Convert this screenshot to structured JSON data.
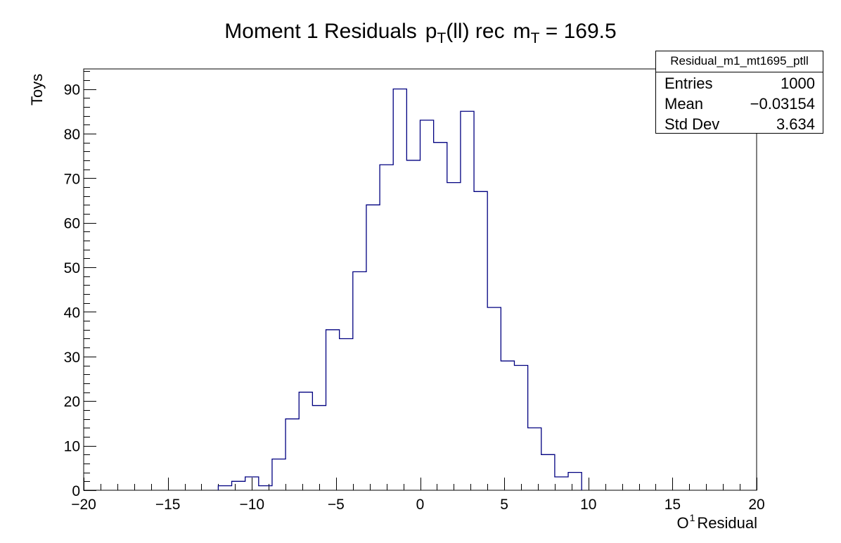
{
  "title": {
    "prefix": "Moment 1 Residuals",
    "p": "p",
    "p_sub": "T",
    "p_rest": "(ll) rec",
    "m": "m",
    "m_sub": "T",
    "m_rest": "= 169.5"
  },
  "xlabel": {
    "base": "O",
    "sup": "1",
    "rest": "Residual"
  },
  "stats": {
    "name": "Residual_m1_mt1695_ptll",
    "rows": [
      {
        "label": "Entries",
        "value": "1000"
      },
      {
        "label": "Mean",
        "value": "−0.03154"
      },
      {
        "label": "Std Dev",
        "value": "3.634"
      }
    ]
  },
  "colors": {
    "histogram_line": "#000080",
    "axis": "#000000",
    "background": "#ffffff"
  },
  "chart_data": {
    "type": "histogram",
    "title": "Moment 1 Residuals  p_T(ll) rec  m_T = 169.5",
    "xlabel": "O^1 Residual",
    "ylabel": "Toys",
    "xlim": [
      -20,
      20
    ],
    "ylim": [
      0,
      94.5
    ],
    "bin_width": 0.8,
    "bin_edges_start": -12.0,
    "values": [
      1,
      2,
      3,
      1,
      7,
      16,
      22,
      19,
      36,
      34,
      49,
      64,
      73,
      90,
      74,
      83,
      78,
      69,
      85,
      67,
      41,
      29,
      28,
      14,
      8,
      3,
      4
    ],
    "x_ticks": [
      -20,
      -15,
      -10,
      -5,
      0,
      5,
      10,
      15,
      20
    ],
    "x_tick_labels": [
      "−20",
      "−15",
      "−10",
      "−5",
      "0",
      "5",
      "10",
      "15",
      "20"
    ],
    "y_ticks": [
      0,
      10,
      20,
      30,
      40,
      50,
      60,
      70,
      80,
      90
    ],
    "y_tick_labels": [
      "0",
      "10",
      "20",
      "30",
      "40",
      "50",
      "60",
      "70",
      "80",
      "90"
    ],
    "legend": "top-right"
  }
}
